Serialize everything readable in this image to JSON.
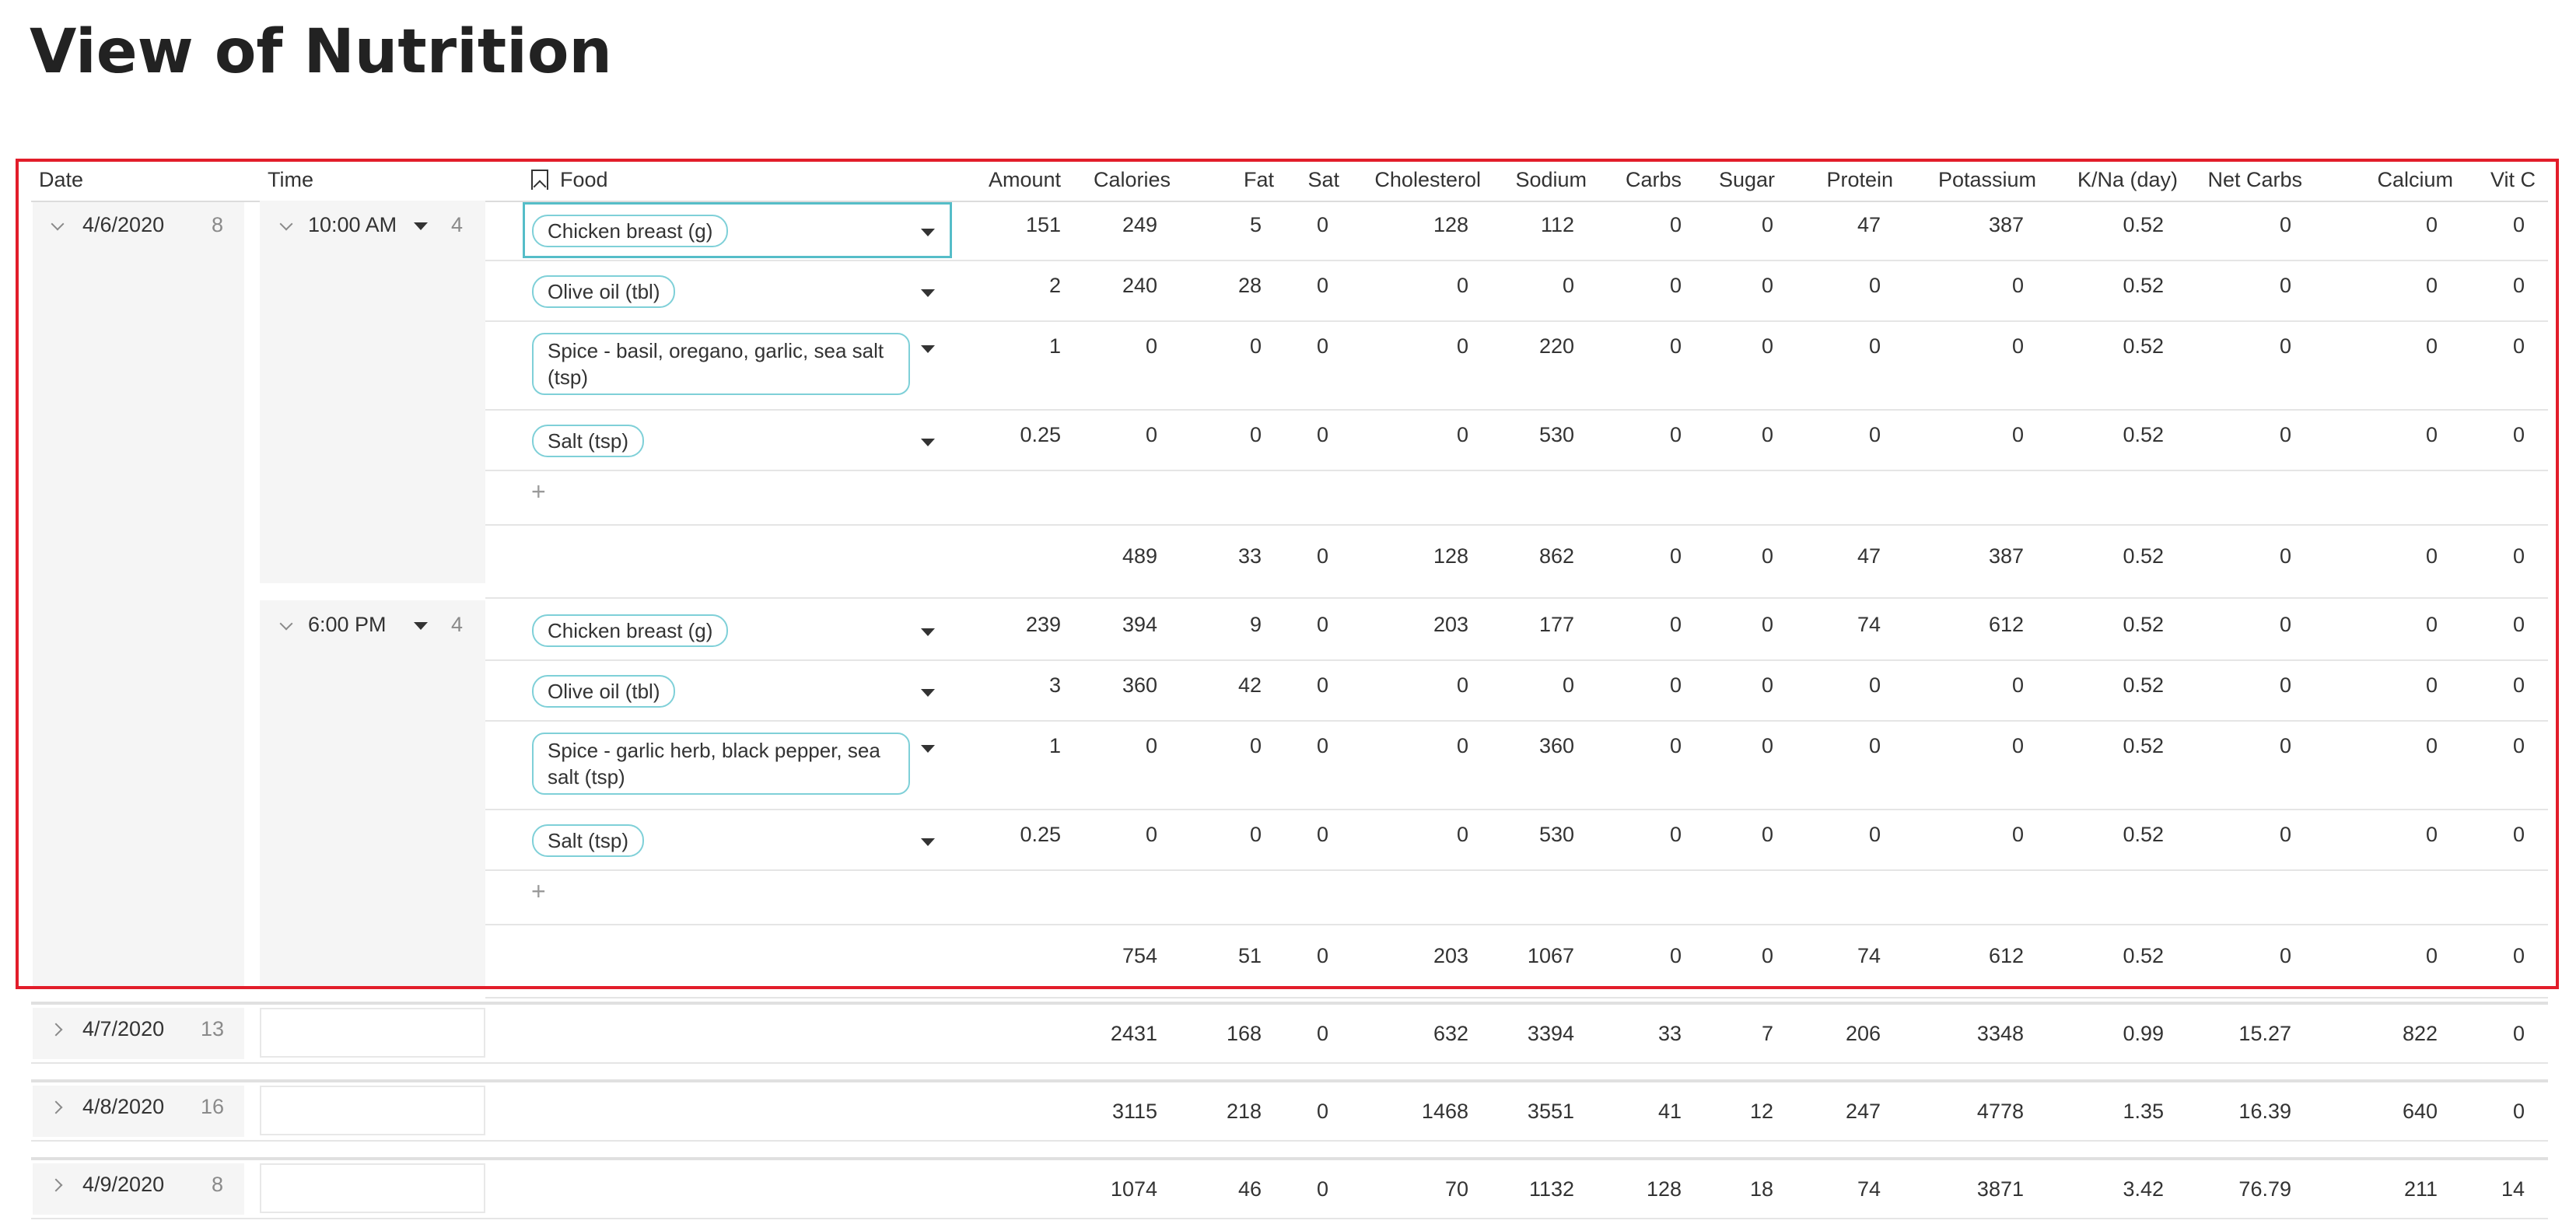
{
  "page": {
    "title": "View of Nutrition"
  },
  "columns": {
    "date": "Date",
    "time": "Time",
    "food": "Food",
    "amount": "Amount",
    "calories": "Calories",
    "fat": "Fat",
    "sat": "Sat",
    "cholesterol": "Cholesterol",
    "sodium": "Sodium",
    "carbs": "Carbs",
    "sugar": "Sugar",
    "protein": "Protein",
    "potassium": "Potassium",
    "kna": "K/Na (day)",
    "net_carbs": "Net Carbs",
    "calcium": "Calcium",
    "vitc": "Vit C"
  },
  "groups": [
    {
      "date": "4/6/2020",
      "count": "8",
      "expanded": true,
      "times": [
        {
          "time": "10:00 AM",
          "count": "4",
          "rows": [
            {
              "food": "Chicken breast (g)",
              "amount": "151",
              "calories": "249",
              "fat": "5",
              "sat": "0",
              "cholesterol": "128",
              "sodium": "112",
              "carbs": "0",
              "sugar": "0",
              "protein": "47",
              "potassium": "387",
              "kna": "0.52",
              "net_carbs": "0",
              "calcium": "0",
              "vitc": "0"
            },
            {
              "food": "Olive oil (tbl)",
              "amount": "2",
              "calories": "240",
              "fat": "28",
              "sat": "0",
              "cholesterol": "0",
              "sodium": "0",
              "carbs": "0",
              "sugar": "0",
              "protein": "0",
              "potassium": "0",
              "kna": "0.52",
              "net_carbs": "0",
              "calcium": "0",
              "vitc": "0"
            },
            {
              "food": "Spice - basil, oregano, garlic, sea salt (tsp)",
              "amount": "1",
              "calories": "0",
              "fat": "0",
              "sat": "0",
              "cholesterol": "0",
              "sodium": "220",
              "carbs": "0",
              "sugar": "0",
              "protein": "0",
              "potassium": "0",
              "kna": "0.52",
              "net_carbs": "0",
              "calcium": "0",
              "vitc": "0"
            },
            {
              "food": "Salt (tsp)",
              "amount": "0.25",
              "calories": "0",
              "fat": "0",
              "sat": "0",
              "cholesterol": "0",
              "sodium": "530",
              "carbs": "0",
              "sugar": "0",
              "protein": "0",
              "potassium": "0",
              "kna": "0.52",
              "net_carbs": "0",
              "calcium": "0",
              "vitc": "0"
            }
          ],
          "add_label": "+",
          "summary": {
            "calories": "489",
            "fat": "33",
            "sat": "0",
            "cholesterol": "128",
            "sodium": "862",
            "carbs": "0",
            "sugar": "0",
            "protein": "47",
            "potassium": "387",
            "kna": "0.52",
            "net_carbs": "0",
            "calcium": "0",
            "vitc": "0"
          }
        },
        {
          "time": "6:00 PM",
          "count": "4",
          "rows": [
            {
              "food": "Chicken breast (g)",
              "amount": "239",
              "calories": "394",
              "fat": "9",
              "sat": "0",
              "cholesterol": "203",
              "sodium": "177",
              "carbs": "0",
              "sugar": "0",
              "protein": "74",
              "potassium": "612",
              "kna": "0.52",
              "net_carbs": "0",
              "calcium": "0",
              "vitc": "0"
            },
            {
              "food": "Olive oil (tbl)",
              "amount": "3",
              "calories": "360",
              "fat": "42",
              "sat": "0",
              "cholesterol": "0",
              "sodium": "0",
              "carbs": "0",
              "sugar": "0",
              "protein": "0",
              "potassium": "0",
              "kna": "0.52",
              "net_carbs": "0",
              "calcium": "0",
              "vitc": "0"
            },
            {
              "food": "Spice - garlic herb, black pepper, sea salt (tsp)",
              "amount": "1",
              "calories": "0",
              "fat": "0",
              "sat": "0",
              "cholesterol": "0",
              "sodium": "360",
              "carbs": "0",
              "sugar": "0",
              "protein": "0",
              "potassium": "0",
              "kna": "0.52",
              "net_carbs": "0",
              "calcium": "0",
              "vitc": "0"
            },
            {
              "food": "Salt (tsp)",
              "amount": "0.25",
              "calories": "0",
              "fat": "0",
              "sat": "0",
              "cholesterol": "0",
              "sodium": "530",
              "carbs": "0",
              "sugar": "0",
              "protein": "0",
              "potassium": "0",
              "kna": "0.52",
              "net_carbs": "0",
              "calcium": "0",
              "vitc": "0"
            }
          ],
          "add_label": "+",
          "summary": {
            "calories": "754",
            "fat": "51",
            "sat": "0",
            "cholesterol": "203",
            "sodium": "1067",
            "carbs": "0",
            "sugar": "0",
            "protein": "74",
            "potassium": "612",
            "kna": "0.52",
            "net_carbs": "0",
            "calcium": "0",
            "vitc": "0"
          }
        }
      ]
    },
    {
      "date": "4/7/2020",
      "count": "13",
      "expanded": false,
      "summary": {
        "calories": "2431",
        "fat": "168",
        "sat": "0",
        "cholesterol": "632",
        "sodium": "3394",
        "carbs": "33",
        "sugar": "7",
        "protein": "206",
        "potassium": "3348",
        "kna": "0.99",
        "net_carbs": "15.27",
        "calcium": "822",
        "vitc": "0"
      }
    },
    {
      "date": "4/8/2020",
      "count": "16",
      "expanded": false,
      "summary": {
        "calories": "3115",
        "fat": "218",
        "sat": "0",
        "cholesterol": "1468",
        "sodium": "3551",
        "carbs": "41",
        "sugar": "12",
        "protein": "247",
        "potassium": "4778",
        "kna": "1.35",
        "net_carbs": "16.39",
        "calcium": "640",
        "vitc": "0"
      }
    },
    {
      "date": "4/9/2020",
      "count": "8",
      "expanded": false,
      "summary": {
        "calories": "1074",
        "fat": "46",
        "sat": "0",
        "cholesterol": "70",
        "sodium": "1132",
        "carbs": "128",
        "sugar": "18",
        "protein": "74",
        "potassium": "3871",
        "kna": "3.42",
        "net_carbs": "76.79",
        "calcium": "211",
        "vitc": "14"
      }
    }
  ],
  "colors": {
    "pill_border": "#7fd0d8",
    "selection": "#e21d2a",
    "focus": "#55bdc8",
    "panel": "#f5f5f5"
  },
  "icons": {
    "expand": "chevron-down-icon",
    "collapse": "chevron-right-icon",
    "dropdown": "caret-down-icon",
    "food_col": "bookmark-icon"
  }
}
